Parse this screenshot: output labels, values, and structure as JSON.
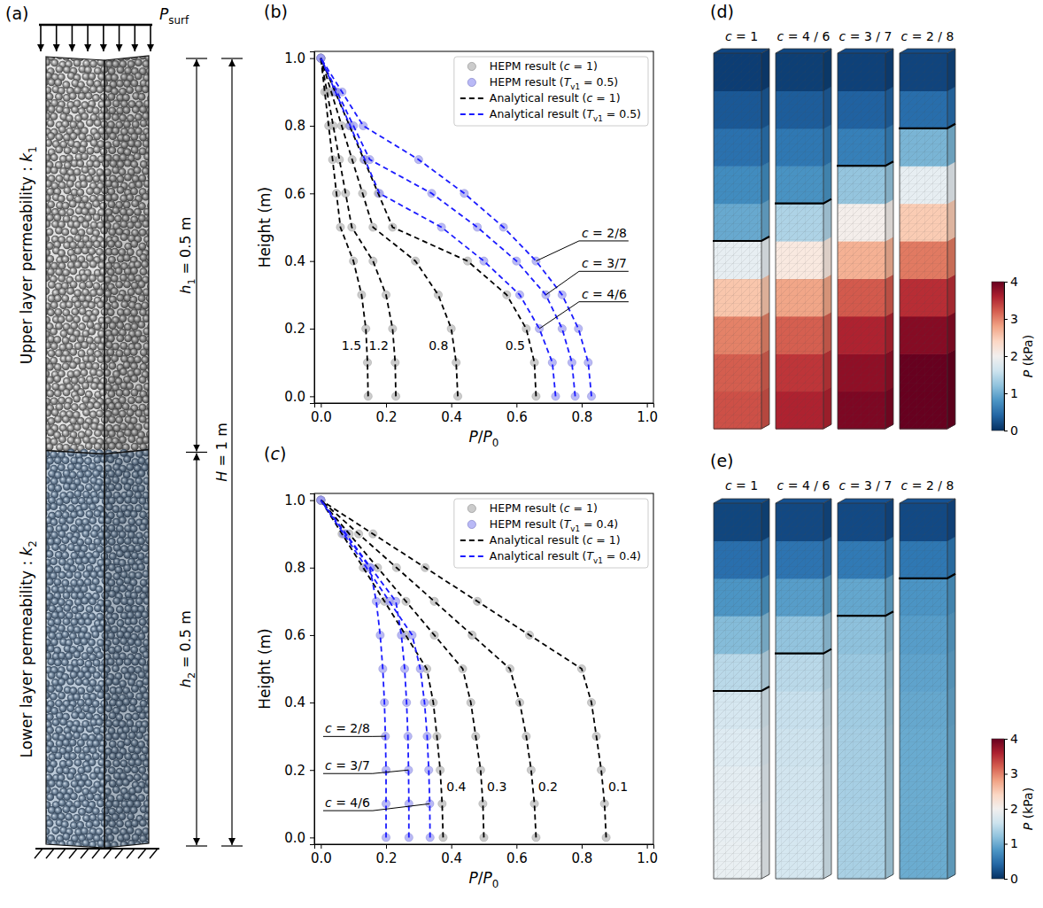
{
  "chart_data": [
    {
      "type": "diagram",
      "panel_label": "(a)",
      "load_label": "Psurf",
      "upper_layer_label": "Upper layer permeability : k1",
      "lower_layer_label": "Lower layer permeability : k2",
      "h1_label": "h1 = 0.5 m",
      "h2_label": "h2 = 0.5 m",
      "H_label": "H = 1 m",
      "h1": 0.5,
      "h2": 0.5
    },
    {
      "type": "line",
      "panel_label": "(b)",
      "x_label": "P/P0",
      "y_label": "Height (m)",
      "xlim": [
        -0.02,
        1.02
      ],
      "ylim": [
        -0.02,
        1.02
      ],
      "xticks": [
        {
          "value": 0,
          "label": "0.0"
        },
        0.2,
        0.4,
        0.6,
        0.8,
        {
          "value": 1,
          "label": "1.0"
        }
      ],
      "yticks": [
        {
          "value": 0,
          "label": "0.0"
        },
        0.2,
        0.4,
        0.6,
        0.8,
        {
          "value": 1,
          "label": "1.0"
        }
      ],
      "legend": "upper right",
      "y": [
        0,
        0.1,
        0.2,
        0.3,
        0.4,
        0.5,
        0.6,
        0.7,
        0.8,
        0.9,
        1
      ],
      "series": [
        {
          "name": "HEPM result (c = 1)",
          "color": "#b5b5b5",
          "marker": "circle",
          "x": [
            0.145,
            0.143,
            0.138,
            0.125,
            0.1,
            0.06,
            0.048,
            0.036,
            0.024,
            0.012,
            0
          ]
        },
        {
          "name": "HEPM result (c = 1)",
          "color": "#b5b5b5",
          "marker": "circle",
          "x": [
            0.23,
            0.228,
            0.22,
            0.2,
            0.16,
            0.095,
            0.076,
            0.057,
            0.038,
            0.019,
            0
          ]
        },
        {
          "name": "HEPM result (c = 1)",
          "color": "#b5b5b5",
          "marker": "circle",
          "x": [
            0.42,
            0.415,
            0.4,
            0.36,
            0.29,
            0.16,
            0.128,
            0.096,
            0.064,
            0.032,
            0
          ]
        },
        {
          "name": "HEPM result (c = 1)",
          "color": "#b5b5b5",
          "marker": "circle",
          "x": [
            0.66,
            0.655,
            0.63,
            0.57,
            0.45,
            0.22,
            0.176,
            0.132,
            0.088,
            0.044,
            0
          ]
        },
        {
          "name": "HEPM result (Tv1 = 0.5)",
          "color": "#9b9bf2",
          "marker": "circle",
          "x": [
            0.72,
            0.71,
            0.67,
            0.61,
            0.5,
            0.37,
            0.18,
            0.135,
            0.09,
            0.045,
            0
          ]
        },
        {
          "name": "HEPM result (Tv1 = 0.5)",
          "color": "#9b9bf2",
          "marker": "circle",
          "x": [
            0.78,
            0.77,
            0.74,
            0.69,
            0.6,
            0.48,
            0.34,
            0.15,
            0.1,
            0.05,
            0
          ]
        },
        {
          "name": "HEPM result (Tv1 = 0.5)",
          "color": "#9b9bf2",
          "marker": "circle",
          "x": [
            0.83,
            0.82,
            0.79,
            0.74,
            0.66,
            0.56,
            0.44,
            0.3,
            0.13,
            0.065,
            0
          ]
        },
        {
          "name": "Analytical result (c = 1)",
          "color": "#000000",
          "line_style": "dashed",
          "label": "1.5",
          "x": [
            0.145,
            0.143,
            0.138,
            0.125,
            0.1,
            0.06,
            0.048,
            0.036,
            0.024,
            0.012,
            0
          ]
        },
        {
          "name": "Analytical result (c = 1)",
          "color": "#000000",
          "line_style": "dashed",
          "label": "1.2",
          "x": [
            0.23,
            0.228,
            0.22,
            0.2,
            0.16,
            0.095,
            0.076,
            0.057,
            0.038,
            0.019,
            0
          ]
        },
        {
          "name": "Analytical result (c = 1)",
          "color": "#000000",
          "line_style": "dashed",
          "label": "0.8",
          "x": [
            0.42,
            0.415,
            0.4,
            0.36,
            0.29,
            0.16,
            0.128,
            0.096,
            0.064,
            0.032,
            0
          ]
        },
        {
          "name": "Analytical result (c = 1)",
          "color": "#000000",
          "line_style": "dashed",
          "label": "0.5",
          "x": [
            0.66,
            0.655,
            0.63,
            0.57,
            0.45,
            0.22,
            0.176,
            0.132,
            0.088,
            0.044,
            0
          ]
        },
        {
          "name": "Analytical result (Tv1 = 0.5)",
          "color": "#1a1aff",
          "line_style": "dashed",
          "label": "c = 4/6",
          "x": [
            0.72,
            0.71,
            0.67,
            0.61,
            0.5,
            0.37,
            0.18,
            0.135,
            0.09,
            0.045,
            0
          ]
        },
        {
          "name": "Analytical result (Tv1 = 0.5)",
          "color": "#1a1aff",
          "line_style": "dashed",
          "label": "c = 3/7",
          "x": [
            0.78,
            0.77,
            0.74,
            0.69,
            0.6,
            0.48,
            0.34,
            0.15,
            0.1,
            0.05,
            0
          ]
        },
        {
          "name": "Analytical result (Tv1 = 0.5)",
          "color": "#1a1aff",
          "line_style": "dashed",
          "label": "c = 2/8",
          "x": [
            0.83,
            0.82,
            0.79,
            0.74,
            0.66,
            0.56,
            0.44,
            0.3,
            0.13,
            0.065,
            0
          ]
        }
      ]
    },
    {
      "type": "line",
      "panel_label": "(c)",
      "x_label": "P/P0",
      "y_label": "Height (m)",
      "xlim": [
        -0.02,
        1.02
      ],
      "ylim": [
        -0.02,
        1.02
      ],
      "xticks": [
        {
          "value": 0,
          "label": "0.0"
        },
        0.2,
        0.4,
        0.6,
        0.8,
        {
          "value": 1,
          "label": "1.0"
        }
      ],
      "yticks": [
        {
          "value": 0,
          "label": "0.0"
        },
        0.2,
        0.4,
        0.6,
        0.8,
        {
          "value": 1,
          "label": "1.0"
        }
      ],
      "legend": "upper right",
      "y": [
        0,
        0.1,
        0.2,
        0.3,
        0.4,
        0.5,
        0.6,
        0.7,
        0.8,
        0.9,
        1
      ],
      "series": [
        {
          "name": "HEPM result (c = 1)",
          "color": "#b5b5b5",
          "marker": "circle",
          "x": [
            0.875,
            0.87,
            0.86,
            0.845,
            0.83,
            0.8,
            0.64,
            0.48,
            0.32,
            0.16,
            0
          ]
        },
        {
          "name": "HEPM result (c = 1)",
          "color": "#b5b5b5",
          "marker": "circle",
          "x": [
            0.66,
            0.655,
            0.645,
            0.63,
            0.61,
            0.58,
            0.464,
            0.348,
            0.232,
            0.116,
            0
          ]
        },
        {
          "name": "HEPM result (c = 1)",
          "color": "#b5b5b5",
          "marker": "circle",
          "x": [
            0.5,
            0.497,
            0.49,
            0.475,
            0.46,
            0.435,
            0.348,
            0.261,
            0.174,
            0.087,
            0
          ]
        },
        {
          "name": "HEPM result (c = 1)",
          "color": "#b5b5b5",
          "marker": "circle",
          "x": [
            0.375,
            0.372,
            0.366,
            0.356,
            0.345,
            0.325,
            0.26,
            0.195,
            0.13,
            0.065,
            0
          ]
        },
        {
          "name": "HEPM result (Tv1 = 0.4)",
          "color": "#9b9bf2",
          "marker": "circle",
          "x": [
            0.335,
            0.334,
            0.331,
            0.326,
            0.318,
            0.305,
            0.28,
            0.21,
            0.14,
            0.07,
            0
          ]
        },
        {
          "name": "HEPM result (Tv1 = 0.4)",
          "color": "#9b9bf2",
          "marker": "circle",
          "x": [
            0.27,
            0.27,
            0.269,
            0.267,
            0.263,
            0.257,
            0.247,
            0.23,
            0.153,
            0.077,
            0
          ]
        },
        {
          "name": "HEPM result (Tv1 = 0.4)",
          "color": "#9b9bf2",
          "marker": "circle",
          "x": [
            0.2,
            0.2,
            0.2,
            0.198,
            0.195,
            0.19,
            0.182,
            0.17,
            0.15,
            0.075,
            0
          ]
        },
        {
          "name": "Analytical result (c = 1)",
          "color": "#000000",
          "line_style": "dashed",
          "label": "0.1",
          "x": [
            0.875,
            0.87,
            0.86,
            0.845,
            0.83,
            0.8,
            0.64,
            0.48,
            0.32,
            0.16,
            0
          ]
        },
        {
          "name": "Analytical result (c = 1)",
          "color": "#000000",
          "line_style": "dashed",
          "label": "0.2",
          "x": [
            0.66,
            0.655,
            0.645,
            0.63,
            0.61,
            0.58,
            0.464,
            0.348,
            0.232,
            0.116,
            0
          ]
        },
        {
          "name": "Analytical result (c = 1)",
          "color": "#000000",
          "line_style": "dashed",
          "label": "0.3",
          "x": [
            0.5,
            0.497,
            0.49,
            0.475,
            0.46,
            0.435,
            0.348,
            0.261,
            0.174,
            0.087,
            0
          ]
        },
        {
          "name": "Analytical result (c = 1)",
          "color": "#000000",
          "line_style": "dashed",
          "label": "0.4",
          "x": [
            0.375,
            0.372,
            0.366,
            0.356,
            0.345,
            0.325,
            0.26,
            0.195,
            0.13,
            0.065,
            0
          ]
        },
        {
          "name": "Analytical result (Tv1 = 0.4)",
          "color": "#1a1aff",
          "line_style": "dashed",
          "label": "c = 4/6",
          "x": [
            0.335,
            0.334,
            0.331,
            0.326,
            0.318,
            0.305,
            0.28,
            0.21,
            0.14,
            0.07,
            0
          ]
        },
        {
          "name": "Analytical result (Tv1 = 0.4)",
          "color": "#1a1aff",
          "line_style": "dashed",
          "label": "c = 3/7",
          "x": [
            0.27,
            0.27,
            0.269,
            0.267,
            0.263,
            0.257,
            0.247,
            0.23,
            0.153,
            0.077,
            0
          ]
        },
        {
          "name": "Analytical result (Tv1 = 0.4)",
          "color": "#1a1aff",
          "line_style": "dashed",
          "label": "c = 2/8",
          "x": [
            0.2,
            0.2,
            0.2,
            0.198,
            0.195,
            0.19,
            0.182,
            0.17,
            0.15,
            0.075,
            0
          ]
        }
      ]
    },
    {
      "type": "heatmap",
      "panel_label": "(d)",
      "y_edges": [
        0,
        0.1,
        0.2,
        0.3,
        0.4,
        0.5,
        0.6,
        0.7,
        0.8,
        0.9,
        1
      ],
      "zlim": [
        0,
        4
      ],
      "zticks": [
        0,
        1,
        2,
        3,
        4
      ],
      "colorbar_label": "P (kPa)",
      "columns": [
        {
          "title": "c = 1",
          "interface": 0.5,
          "values": [
            3.29,
            3.21,
            3.0,
            2.55,
            1.85,
            0.98,
            0.73,
            0.5,
            0.3,
            0.1
          ]
        },
        {
          "title": "c = 4 / 6",
          "interface": 0.6,
          "values": [
            3.58,
            3.45,
            3.2,
            2.78,
            2.18,
            1.38,
            0.79,
            0.56,
            0.34,
            0.11
          ]
        },
        {
          "title": "c = 3 / 7",
          "interface": 0.7,
          "values": [
            3.88,
            3.78,
            3.58,
            3.23,
            2.7,
            2.05,
            1.23,
            0.63,
            0.38,
            0.13
          ]
        },
        {
          "title": "c = 2 / 8",
          "interface": 0.8,
          "values": [
            4.13,
            4.03,
            3.83,
            3.5,
            3.05,
            2.5,
            1.85,
            1.08,
            0.48,
            0.15
          ]
        }
      ]
    },
    {
      "type": "heatmap",
      "panel_label": "(e)",
      "y_edges": [
        0,
        0.1,
        0.2,
        0.3,
        0.4,
        0.5,
        0.6,
        0.7,
        0.8,
        0.9,
        1
      ],
      "zlim": [
        0,
        4
      ],
      "zticks": [
        0,
        1,
        2,
        3,
        4
      ],
      "colorbar_label": "P (kPa)",
      "columns": [
        {
          "title": "c = 1",
          "interface": 0.5,
          "values": [
            1.87,
            1.85,
            1.81,
            1.75,
            1.68,
            1.46,
            1.14,
            0.81,
            0.49,
            0.16
          ]
        },
        {
          "title": "c = 4 / 6",
          "interface": 0.6,
          "values": [
            1.67,
            1.66,
            1.64,
            1.61,
            1.56,
            1.46,
            1.22,
            0.88,
            0.53,
            0.18
          ]
        },
        {
          "title": "c = 3 / 7",
          "interface": 0.7,
          "values": [
            1.35,
            1.35,
            1.34,
            1.33,
            1.3,
            1.26,
            1.19,
            0.96,
            0.58,
            0.19
          ]
        },
        {
          "title": "c = 2 / 8",
          "interface": 0.8,
          "values": [
            1.0,
            1.0,
            1.0,
            0.99,
            0.97,
            0.93,
            0.88,
            0.8,
            0.56,
            0.19
          ]
        }
      ]
    }
  ]
}
